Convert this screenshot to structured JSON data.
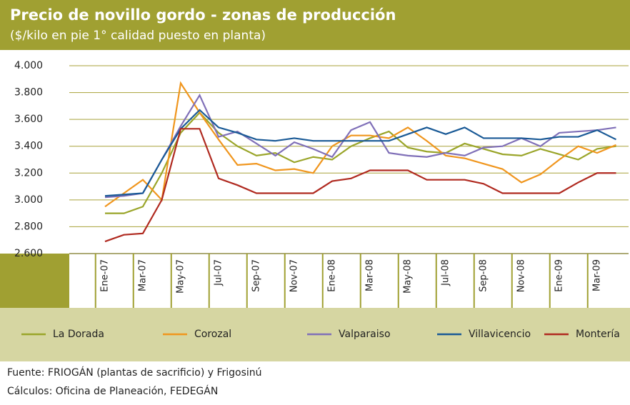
{
  "chart_data": {
    "type": "line",
    "title": "Precio de novillo gordo - zonas de producción",
    "subtitle": "($/kilo en pie 1° calidad puesto en planta)",
    "categories": [
      "Ene-07",
      null,
      "Mar-07",
      null,
      "May-07",
      null,
      "Jul-07",
      null,
      "Sep-07",
      null,
      "Nov-07",
      null,
      "Ene-08",
      null,
      "Mar-08",
      null,
      "May-08",
      null,
      "Jul-08",
      null,
      "Sep-08",
      null,
      "Nov-08",
      null,
      "Ene-09",
      null,
      "Mar-09",
      null
    ],
    "series": [
      {
        "name": "La Dorada",
        "color": "#9aa52a",
        "values": [
          2900,
          2900,
          2950,
          3200,
          3500,
          3650,
          3500,
          3400,
          3330,
          3350,
          3280,
          3320,
          3300,
          3400,
          3460,
          3510,
          3390,
          3360,
          3350,
          3420,
          3380,
          3340,
          3330,
          3380,
          3340,
          3300,
          3380,
          3400
        ]
      },
      {
        "name": "Corozal",
        "color": "#f0961e",
        "values": [
          2950,
          3050,
          3150,
          3000,
          3870,
          3650,
          3450,
          3260,
          3270,
          3220,
          3230,
          3200,
          3400,
          3480,
          3480,
          3460,
          3540,
          3440,
          3330,
          3310,
          3270,
          3230,
          3130,
          3190,
          3300,
          3400,
          3350,
          3410
        ]
      },
      {
        "name": "Valparaiso",
        "color": "#8070b8",
        "values": [
          3020,
          3030,
          3050,
          3300,
          3550,
          3780,
          3470,
          3510,
          3420,
          3330,
          3430,
          3380,
          3320,
          3520,
          3580,
          3350,
          3330,
          3320,
          3350,
          3330,
          3390,
          3400,
          3460,
          3400,
          3500,
          3510,
          3520,
          3540
        ]
      },
      {
        "name": "Villavicencio",
        "color": "#1a5a96",
        "values": [
          3030,
          3040,
          3050,
          3300,
          3530,
          3670,
          3540,
          3500,
          3450,
          3440,
          3460,
          3440,
          3440,
          3440,
          3440,
          3440,
          3490,
          3540,
          3490,
          3540,
          3460,
          3460,
          3460,
          3450,
          3470,
          3470,
          3520,
          3450
        ]
      },
      {
        "name": "Montería",
        "color": "#b02a20",
        "values": [
          2690,
          2740,
          2750,
          3000,
          3530,
          3530,
          3160,
          3110,
          3050,
          3050,
          3050,
          3050,
          3140,
          3160,
          3220,
          3220,
          3220,
          3150,
          3150,
          3150,
          3120,
          3050,
          3050,
          3050,
          3050,
          3130,
          3200,
          3200
        ]
      }
    ],
    "ylim": [
      2600,
      4000
    ],
    "yticks": [
      {
        "value": 2600,
        "label": "2.600"
      },
      {
        "value": 2800,
        "label": "2.800"
      },
      {
        "value": 3000,
        "label": "3.000"
      },
      {
        "value": 3200,
        "label": "3.200"
      },
      {
        "value": 3400,
        "label": "3.400"
      },
      {
        "value": 3600,
        "label": "3.600"
      },
      {
        "value": 3800,
        "label": "3.800"
      },
      {
        "value": 4000,
        "label": "4.000"
      }
    ],
    "grid": true,
    "source": "Fuente:  FRIOGÁN (plantas de sacrificio) y Frigosinú",
    "calc": "Cálculos: Oficina de Planeación, FEDEGÁN"
  }
}
